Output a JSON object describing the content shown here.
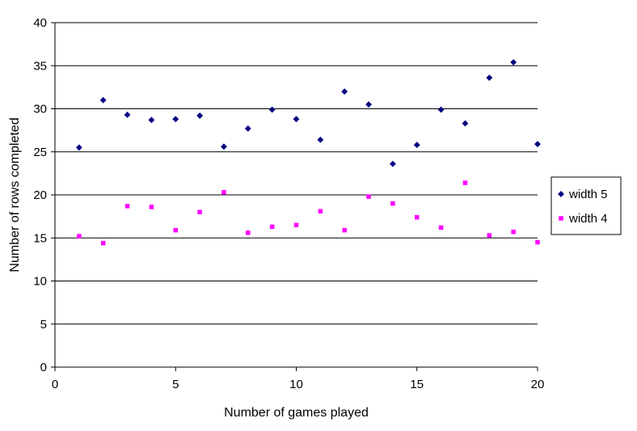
{
  "chart_data": {
    "type": "scatter",
    "title": "",
    "xlabel": "Number of games played",
    "ylabel": "Number of rows completed",
    "xlim": [
      0,
      20
    ],
    "ylim": [
      0,
      40
    ],
    "x_ticks": [
      0,
      5,
      10,
      15,
      20
    ],
    "y_ticks": [
      0,
      5,
      10,
      15,
      20,
      25,
      30,
      35,
      40
    ],
    "grid": "horizontal major gridlines",
    "legend_position": "right",
    "series": [
      {
        "name": "width 5",
        "marker": "diamond",
        "color": "#000080",
        "points": [
          [
            1,
            25.5
          ],
          [
            2,
            31.0
          ],
          [
            3,
            29.3
          ],
          [
            4,
            28.7
          ],
          [
            5,
            28.8
          ],
          [
            6,
            29.2
          ],
          [
            7,
            25.6
          ],
          [
            8,
            27.7
          ],
          [
            9,
            29.9
          ],
          [
            10,
            28.8
          ],
          [
            11,
            26.4
          ],
          [
            12,
            32.0
          ],
          [
            13,
            30.5
          ],
          [
            14,
            23.6
          ],
          [
            15,
            25.8
          ],
          [
            16,
            29.9
          ],
          [
            17,
            28.3
          ],
          [
            18,
            33.6
          ],
          [
            19,
            35.4
          ],
          [
            20,
            25.9
          ]
        ]
      },
      {
        "name": "width 4",
        "marker": "square",
        "color": "#FF00FF",
        "points": [
          [
            1,
            15.2
          ],
          [
            2,
            14.4
          ],
          [
            3,
            18.7
          ],
          [
            4,
            18.6
          ],
          [
            5,
            15.9
          ],
          [
            6,
            18.0
          ],
          [
            7,
            20.3
          ],
          [
            8,
            15.6
          ],
          [
            9,
            16.3
          ],
          [
            10,
            16.5
          ],
          [
            11,
            18.1
          ],
          [
            12,
            15.9
          ],
          [
            13,
            19.8
          ],
          [
            14,
            19.0
          ],
          [
            15,
            17.4
          ],
          [
            16,
            16.2
          ],
          [
            17,
            21.4
          ],
          [
            18,
            15.3
          ],
          [
            19,
            15.7
          ],
          [
            20,
            14.5
          ]
        ]
      }
    ]
  }
}
